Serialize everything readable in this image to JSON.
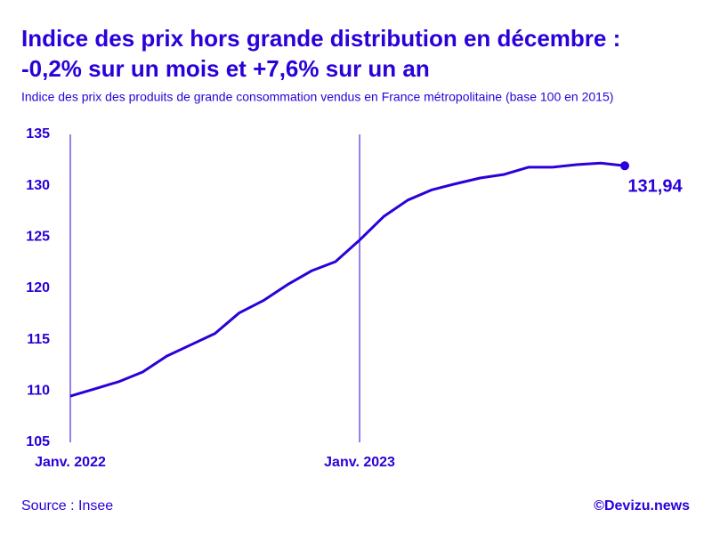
{
  "chart_data": {
    "type": "line",
    "title": [
      "Indice des prix hors grande distribution en décembre :",
      "-0,2% sur un mois et +7,6% sur un an"
    ],
    "subtitle": "Indice des prix des produits de grande consommation vendus en France métropolitaine (base 100 en 2015)",
    "source": "Source : Insee",
    "credit": "©Devizu.news",
    "categories": [
      "Janv. 2022",
      null,
      null,
      null,
      null,
      null,
      null,
      null,
      null,
      null,
      null,
      null,
      "Janv. 2023",
      null,
      null,
      null,
      null,
      null,
      null,
      null,
      null,
      null,
      null,
      null
    ],
    "series": [
      {
        "name": "Indice des prix",
        "color": "#2b00d9",
        "values": [
          109.5,
          110.2,
          110.9,
          111.85,
          113.4,
          114.5,
          115.6,
          117.6,
          118.8,
          120.35,
          121.7,
          122.6,
          124.7,
          127.0,
          128.6,
          129.6,
          130.2,
          130.75,
          131.1,
          131.8,
          131.8,
          132.05,
          132.2,
          131.94
        ],
        "value_labels": [
          null,
          null,
          null,
          null,
          null,
          null,
          null,
          null,
          null,
          null,
          null,
          null,
          null,
          null,
          null,
          null,
          null,
          null,
          null,
          null,
          null,
          null,
          null,
          "131,94"
        ]
      }
    ],
    "ylim": [
      105,
      135
    ],
    "yticks": [
      105,
      110,
      115,
      120,
      125,
      130,
      135
    ]
  }
}
